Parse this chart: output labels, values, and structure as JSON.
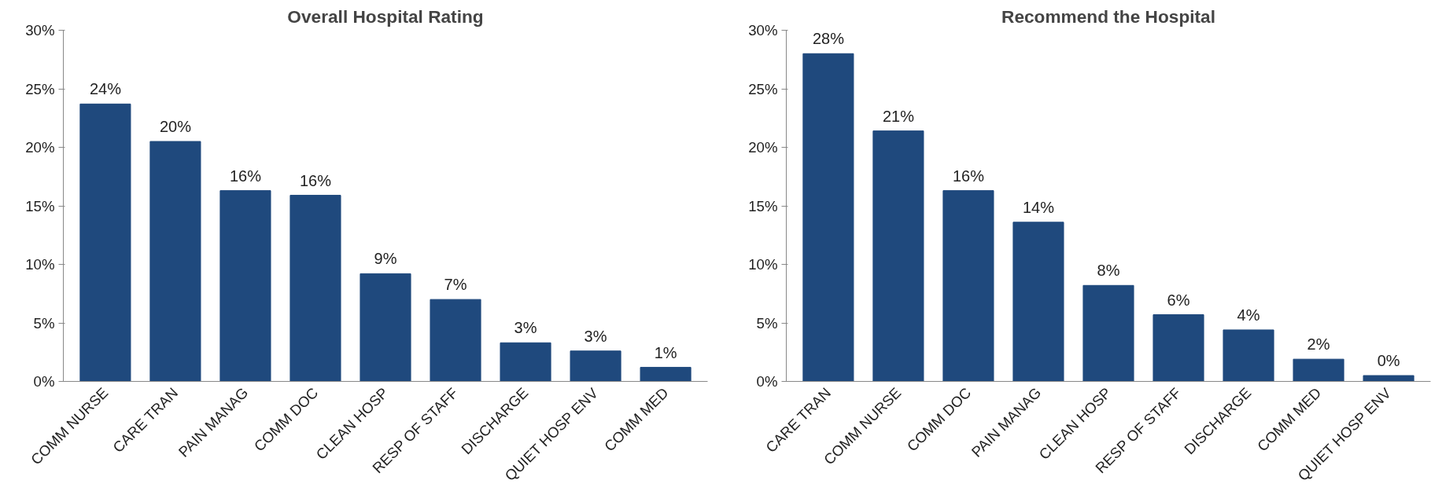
{
  "chart_data": [
    {
      "type": "bar",
      "title": "Overall Hospital Rating",
      "categories": [
        "COMM NURSE",
        "CARE TRAN",
        "PAIN MANAG",
        "COMM DOC",
        "CLEAN HOSP",
        "RESP OF STAFF",
        "DISCHARGE",
        "QUIET HOSP ENV",
        "COMM MED"
      ],
      "values": [
        23.7,
        20.5,
        16.3,
        15.9,
        9.2,
        7.0,
        3.3,
        2.6,
        1.2
      ],
      "value_labels": [
        "24%",
        "20%",
        "16%",
        "16%",
        "9%",
        "7%",
        "3%",
        "3%",
        "1%"
      ],
      "color": "#1f497d",
      "ylim": [
        0,
        30
      ],
      "yticks": [
        {
          "value": 0,
          "label": "0%"
        },
        {
          "value": 5,
          "label": "5%"
        },
        {
          "value": 10,
          "label": "10%"
        },
        {
          "value": 15,
          "label": "15%"
        },
        {
          "value": 20,
          "label": "20%"
        },
        {
          "value": 25,
          "label": "25%"
        },
        {
          "value": 30,
          "label": "30%"
        }
      ],
      "grid": false
    },
    {
      "type": "bar",
      "title": "Recommend the Hospital",
      "categories": [
        "CARE TRAN",
        "COMM NURSE",
        "COMM DOC",
        "PAIN MANAG",
        "CLEAN HOSP",
        "RESP OF STAFF",
        "DISCHARGE",
        "COMM MED",
        "QUIET HOSP ENV"
      ],
      "values": [
        28.0,
        21.4,
        16.3,
        13.6,
        8.2,
        5.7,
        4.4,
        1.9,
        0.5
      ],
      "value_labels": [
        "28%",
        "21%",
        "16%",
        "14%",
        "8%",
        "6%",
        "4%",
        "2%",
        "0%"
      ],
      "color": "#1f497d",
      "ylim": [
        0,
        30
      ],
      "yticks": [
        {
          "value": 0,
          "label": "0%"
        },
        {
          "value": 5,
          "label": "5%"
        },
        {
          "value": 10,
          "label": "10%"
        },
        {
          "value": 15,
          "label": "15%"
        },
        {
          "value": 20,
          "label": "20%"
        },
        {
          "value": 25,
          "label": "25%"
        },
        {
          "value": 30,
          "label": "30%"
        }
      ],
      "grid": false
    }
  ]
}
